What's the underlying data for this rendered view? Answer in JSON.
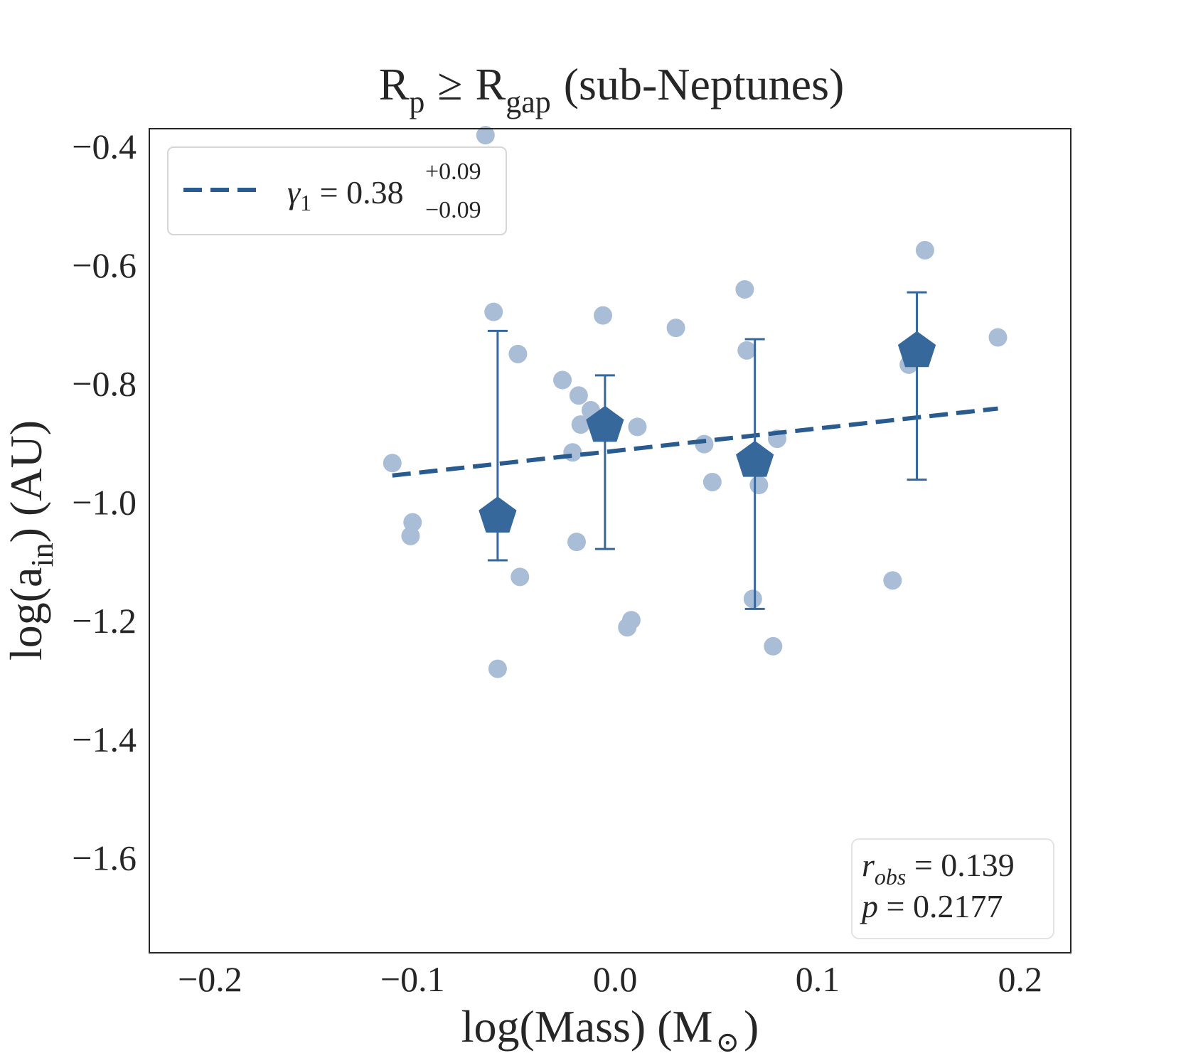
{
  "chart_data": {
    "type": "scatter",
    "title": {
      "base": "R",
      "sub_p": "p",
      "relation": "≥",
      "base2": "R",
      "sub_gap": "gap",
      "suffix": "(sub-Neptunes)"
    },
    "xlabel": {
      "text": "log(Mass) (M",
      "sun_symbol": "⊙",
      "close": ")"
    },
    "ylabel": {
      "prefix": "log(a",
      "sub": "in",
      "suffix": ") (AU)"
    },
    "xlim": [
      -0.23,
      0.225
    ],
    "ylim": [
      -1.76,
      -0.37
    ],
    "xticks": [
      -0.2,
      -0.1,
      0.0,
      0.1,
      0.2
    ],
    "xtick_labels": [
      "−0.2",
      "−0.1",
      "0.0",
      "0.1",
      "0.2"
    ],
    "yticks": [
      -0.4,
      -0.6,
      -0.8,
      -1.0,
      -1.2,
      -1.4,
      -1.6
    ],
    "ytick_labels": [
      "−0.4",
      "−0.6",
      "−0.8",
      "−1.0",
      "−1.2",
      "−1.4",
      "−1.6"
    ],
    "grid": false,
    "colors": {
      "points": "#a9bdd6",
      "binned": "#37689c",
      "fit": "#2a5b8f",
      "axes": "#262626"
    },
    "points": [
      {
        "x": -0.064,
        "y": -0.381
      },
      {
        "x": 0.153,
        "y": -0.575
      },
      {
        "x": 0.064,
        "y": -0.641
      },
      {
        "x": -0.06,
        "y": -0.679
      },
      {
        "x": -0.006,
        "y": -0.685
      },
      {
        "x": 0.03,
        "y": -0.706
      },
      {
        "x": 0.189,
        "y": -0.722
      },
      {
        "x": -0.048,
        "y": -0.75
      },
      {
        "x": 0.065,
        "y": -0.744
      },
      {
        "x": 0.145,
        "y": -0.768
      },
      {
        "x": -0.026,
        "y": -0.794
      },
      {
        "x": -0.018,
        "y": -0.82
      },
      {
        "x": -0.012,
        "y": -0.845
      },
      {
        "x": -0.017,
        "y": -0.869
      },
      {
        "x": 0.011,
        "y": -0.873
      },
      {
        "x": 0.08,
        "y": -0.893
      },
      {
        "x": 0.044,
        "y": -0.902
      },
      {
        "x": -0.021,
        "y": -0.916
      },
      {
        "x": -0.11,
        "y": -0.934
      },
      {
        "x": 0.048,
        "y": -0.966
      },
      {
        "x": 0.071,
        "y": -0.971
      },
      {
        "x": -0.058,
        "y": -1.012
      },
      {
        "x": -0.1,
        "y": -1.034
      },
      {
        "x": -0.101,
        "y": -1.057
      },
      {
        "x": -0.019,
        "y": -1.067
      },
      {
        "x": -0.047,
        "y": -1.126
      },
      {
        "x": 0.137,
        "y": -1.132
      },
      {
        "x": 0.068,
        "y": -1.163
      },
      {
        "x": 0.008,
        "y": -1.199
      },
      {
        "x": 0.006,
        "y": -1.211
      },
      {
        "x": 0.078,
        "y": -1.243
      },
      {
        "x": -0.058,
        "y": -1.281
      }
    ],
    "binned": [
      {
        "x": -0.058,
        "y": -1.024,
        "err_low": -1.098,
        "err_high": -0.711
      },
      {
        "x": -0.005,
        "y": -0.871,
        "err_low": -1.079,
        "err_high": -0.786
      },
      {
        "x": 0.069,
        "y": -0.93,
        "err_low": -1.18,
        "err_high": -0.725
      },
      {
        "x": 0.149,
        "y": -0.745,
        "err_low": -0.962,
        "err_high": -0.646
      }
    ],
    "fit": {
      "x": [
        -0.11,
        0.189
      ],
      "y": [
        -0.955,
        -0.842
      ]
    },
    "legend": {
      "location": "upper-left",
      "symbol": "γ",
      "symbol_sub": "1",
      "eq": " = 0.38",
      "plus": "+0.09",
      "minus": "−0.09"
    },
    "stats": {
      "location": "lower-right",
      "r_label": "r",
      "r_sub": "obs",
      "r_value": " = 0.139",
      "p_label": "p",
      "p_value": " = 0.2177"
    }
  }
}
